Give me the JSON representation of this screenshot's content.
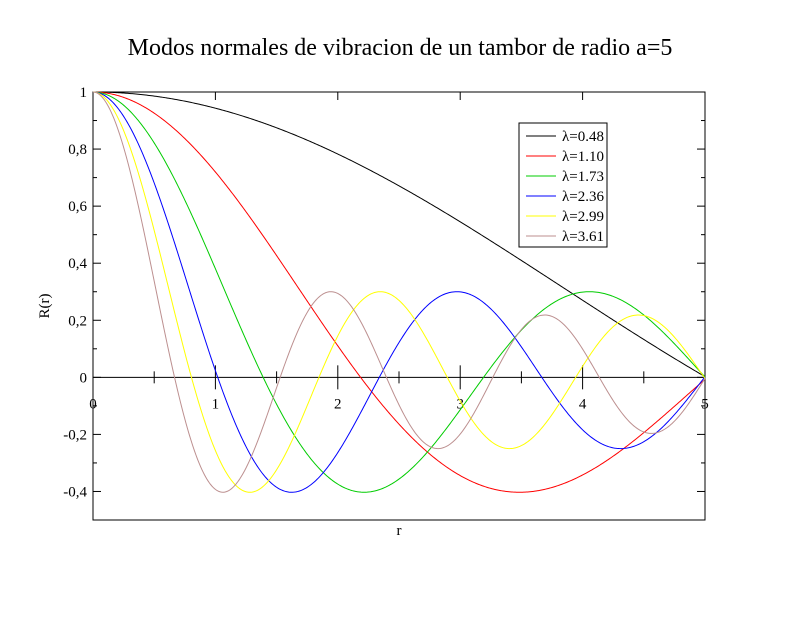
{
  "chart_data": {
    "type": "line",
    "title": "Modos normales de vibracion de un tambor de radio a=5",
    "xlabel": "r",
    "ylabel": "R(r)",
    "xlim": [
      0,
      5
    ],
    "ylim": [
      -0.5,
      1
    ],
    "x_ticks": [
      {
        "value": 0,
        "label": "0"
      },
      {
        "value": 1,
        "label": "1"
      },
      {
        "value": 2,
        "label": "2"
      },
      {
        "value": 3,
        "label": "3"
      },
      {
        "value": 4,
        "label": "4"
      },
      {
        "value": 5,
        "label": "5"
      }
    ],
    "y_ticks": [
      {
        "value": 1,
        "label": "1"
      },
      {
        "value": 0.8,
        "label": "0,8"
      },
      {
        "value": 0.6,
        "label": "0,6"
      },
      {
        "value": 0.4,
        "label": "0,4"
      },
      {
        "value": 0.2,
        "label": "0,2"
      },
      {
        "value": 0,
        "label": "0"
      },
      {
        "value": -0.2,
        "label": "-0,2"
      },
      {
        "value": -0.4,
        "label": "-0,4"
      }
    ],
    "grid": false,
    "legend_position": "top-right",
    "series": [
      {
        "name": "λ=0.48",
        "color": "#000000",
        "lambda": 0.48
      },
      {
        "name": "λ=1.10",
        "color": "#ff0000",
        "lambda": 1.1
      },
      {
        "name": "λ=1.73",
        "color": "#00cc00",
        "lambda": 1.73
      },
      {
        "name": "λ=2.36",
        "color": "#0000ff",
        "lambda": 2.36
      },
      {
        "name": "λ=2.99",
        "color": "#ffff00",
        "lambda": 2.99
      },
      {
        "name": "λ=3.61",
        "color": "#bc8f8f",
        "lambda": 3.61
      }
    ]
  }
}
